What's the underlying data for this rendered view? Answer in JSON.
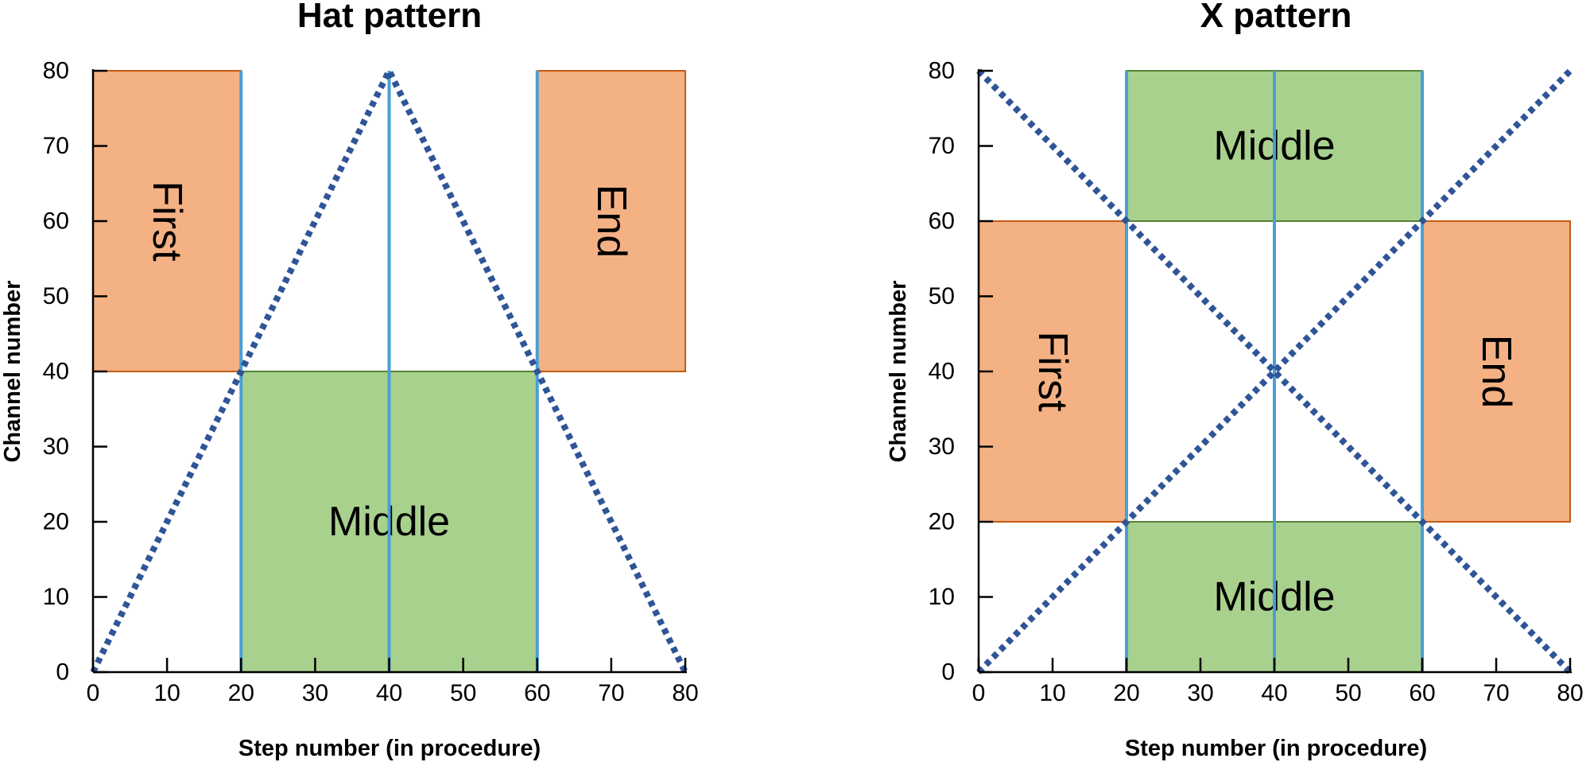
{
  "chart_data": [
    {
      "type": "line",
      "title": "Hat pattern",
      "xlabel": "Step number (in procedure)",
      "ylabel": "Channel number",
      "xlim": [
        0,
        80
      ],
      "ylim": [
        0,
        80
      ],
      "xticks": [
        "0",
        "10",
        "20",
        "30",
        "40",
        "50",
        "60",
        "70",
        "80"
      ],
      "yticks": [
        "0",
        "10",
        "20",
        "30",
        "40",
        "50",
        "60",
        "70",
        "80"
      ],
      "grid": false,
      "regions": [
        {
          "label": "First",
          "x": [
            0,
            20
          ],
          "y": [
            40,
            80
          ],
          "fill": "#f4b183",
          "stroke": "#c55a11",
          "rotation": 90
        },
        {
          "label": "End",
          "x": [
            60,
            80
          ],
          "y": [
            40,
            80
          ],
          "fill": "#f4b183",
          "stroke": "#c55a11",
          "rotation": 90
        },
        {
          "label": "Middle",
          "x": [
            20,
            60
          ],
          "y": [
            0,
            40
          ],
          "fill": "#a9d18e",
          "stroke": "#548235",
          "rotation": 0
        }
      ],
      "vertical_lines": [
        20,
        40,
        60
      ],
      "series": [
        {
          "x": [
            0,
            40,
            80
          ],
          "y": [
            0,
            80,
            0
          ],
          "style": "dotted",
          "color": "#2f5597"
        }
      ]
    },
    {
      "type": "line",
      "title": "X pattern",
      "xlabel": "Step number (in procedure)",
      "ylabel": "Channel number",
      "xlim": [
        0,
        80
      ],
      "ylim": [
        0,
        80
      ],
      "xticks": [
        "0",
        "10",
        "20",
        "30",
        "40",
        "50",
        "60",
        "70",
        "80"
      ],
      "yticks": [
        "0",
        "10",
        "20",
        "30",
        "40",
        "50",
        "60",
        "70",
        "80"
      ],
      "grid": false,
      "regions": [
        {
          "label": "Middle",
          "x": [
            20,
            60
          ],
          "y": [
            60,
            80
          ],
          "fill": "#a9d18e",
          "stroke": "#548235",
          "rotation": 0
        },
        {
          "label": "First",
          "x": [
            0,
            20
          ],
          "y": [
            20,
            60
          ],
          "fill": "#f4b183",
          "stroke": "#c55a11",
          "rotation": 90
        },
        {
          "label": "End",
          "x": [
            60,
            80
          ],
          "y": [
            20,
            60
          ],
          "fill": "#f4b183",
          "stroke": "#c55a11",
          "rotation": 90
        },
        {
          "label": "Middle",
          "x": [
            20,
            60
          ],
          "y": [
            0,
            20
          ],
          "fill": "#a9d18e",
          "stroke": "#548235",
          "rotation": 0
        }
      ],
      "vertical_lines": [
        20,
        40,
        60
      ],
      "series": [
        {
          "x": [
            0,
            80
          ],
          "y": [
            0,
            80
          ],
          "style": "dotted",
          "color": "#2f5597"
        },
        {
          "x": [
            0,
            80
          ],
          "y": [
            80,
            0
          ],
          "style": "dotted",
          "color": "#2f5597"
        }
      ]
    }
  ]
}
